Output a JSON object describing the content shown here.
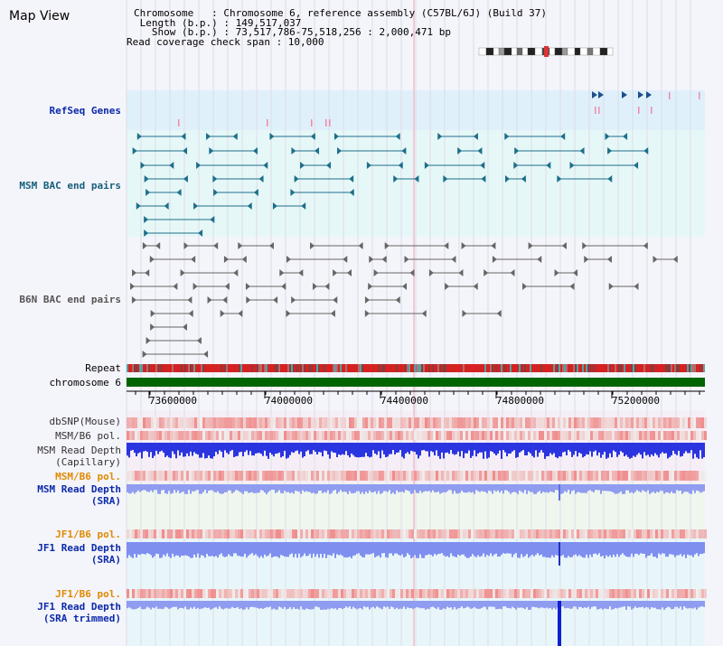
{
  "title": "Map View",
  "info": {
    "chromosome": "Chromosome   : Chromosome 6, reference assembly (C57BL/6J) (Build 37)",
    "length": " Length (b.p.) : 149,517,037",
    "show": "   Show (b.p.) : 73,517,786-75,518,256 : 2,000,471 bp",
    "coverage": "Read coverage check span : 10,000"
  },
  "tracks": {
    "refseq": "RefSeq Genes",
    "msm_bac": "MSM BAC end pairs",
    "b6n_bac": "B6N BAC end pairs",
    "repeat": "Repeat",
    "chromosome": "chromosome 6",
    "dbsnp": "dbSNP(Mouse)",
    "msm_b6_pol_1": "MSM/B6 pol.",
    "msm_depth_cap": "MSM Read Depth\n(Capillary)",
    "msm_b6_pol_2": "MSM/B6 pol.",
    "msm_depth_sra": "MSM Read Depth\n(SRA)",
    "jf1_pol_1": "JF1/B6 pol.",
    "jf1_depth_sra": "JF1 Read Depth\n(SRA)",
    "jf1_pol_2": "JF1/B6 pol.",
    "jf1_depth_trim": "JF1 Read Depth\n(SRA trimmed)"
  },
  "axis": {
    "ticks": [
      "73600000",
      "74000000",
      "74400000",
      "74800000",
      "75200000"
    ]
  },
  "colors": {
    "refseq_bg": "#dff0fb",
    "msm_bg": "#e6f7f8",
    "msm_mark": "#1d6f8a",
    "b6n_mark": "#666666",
    "repeat": "#d62020",
    "chromosome": "#006400",
    "depth_blue": "#2233dd",
    "depth_light": "#8f9cf0",
    "pol": "#e03030"
  }
}
